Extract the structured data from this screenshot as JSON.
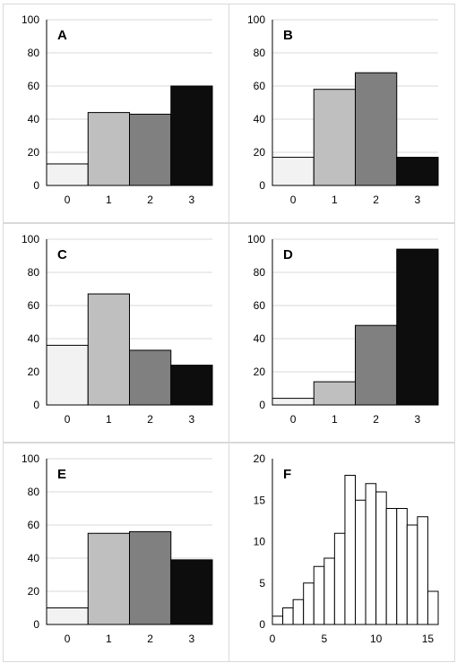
{
  "colors": {
    "cat0": "#f2f2f2",
    "cat1": "#bfbfbf",
    "cat2": "#808080",
    "cat3": "#0d0d0d",
    "gridline": "#d9d9d9",
    "histogram_fill": "#ffffff",
    "stroke": "#000000"
  },
  "chart_data": [
    {
      "id": "A",
      "type": "bar",
      "title": "A",
      "categories": [
        "0",
        "1",
        "2",
        "3"
      ],
      "values": [
        13,
        44,
        43,
        60
      ],
      "ylim": [
        0,
        100
      ],
      "yticks": [
        0,
        20,
        40,
        60,
        80,
        100
      ],
      "grid": true,
      "legend": "none"
    },
    {
      "id": "B",
      "type": "bar",
      "title": "B",
      "categories": [
        "0",
        "1",
        "2",
        "3"
      ],
      "values": [
        17,
        58,
        68,
        17
      ],
      "ylim": [
        0,
        100
      ],
      "yticks": [
        0,
        20,
        40,
        60,
        80,
        100
      ],
      "grid": true,
      "legend": "none"
    },
    {
      "id": "C",
      "type": "bar",
      "title": "C",
      "categories": [
        "0",
        "1",
        "2",
        "3"
      ],
      "values": [
        36,
        67,
        33,
        24
      ],
      "ylim": [
        0,
        100
      ],
      "yticks": [
        0,
        20,
        40,
        60,
        80,
        100
      ],
      "grid": true,
      "legend": "none"
    },
    {
      "id": "D",
      "type": "bar",
      "title": "D",
      "categories": [
        "0",
        "1",
        "2",
        "3"
      ],
      "values": [
        4,
        14,
        48,
        94
      ],
      "ylim": [
        0,
        100
      ],
      "yticks": [
        0,
        20,
        40,
        60,
        80,
        100
      ],
      "grid": true,
      "legend": "none"
    },
    {
      "id": "E",
      "type": "bar",
      "title": "E",
      "categories": [
        "0",
        "1",
        "2",
        "3"
      ],
      "values": [
        10,
        55,
        56,
        39
      ],
      "ylim": [
        0,
        100
      ],
      "yticks": [
        0,
        20,
        40,
        60,
        80,
        100
      ],
      "grid": true,
      "legend": "none"
    },
    {
      "id": "F",
      "type": "histogram",
      "title": "F",
      "bin_start": 0,
      "bin_width": 1,
      "values": [
        1,
        2,
        3,
        5,
        7,
        8,
        11,
        18,
        15,
        17,
        16,
        14,
        14,
        12,
        13,
        4
      ],
      "xlim": [
        0,
        16
      ],
      "xticks": [
        0,
        5,
        10,
        15
      ],
      "ylim": [
        0,
        20
      ],
      "yticks": [
        0,
        5,
        10,
        15,
        20
      ],
      "grid": false,
      "legend": "none"
    }
  ]
}
